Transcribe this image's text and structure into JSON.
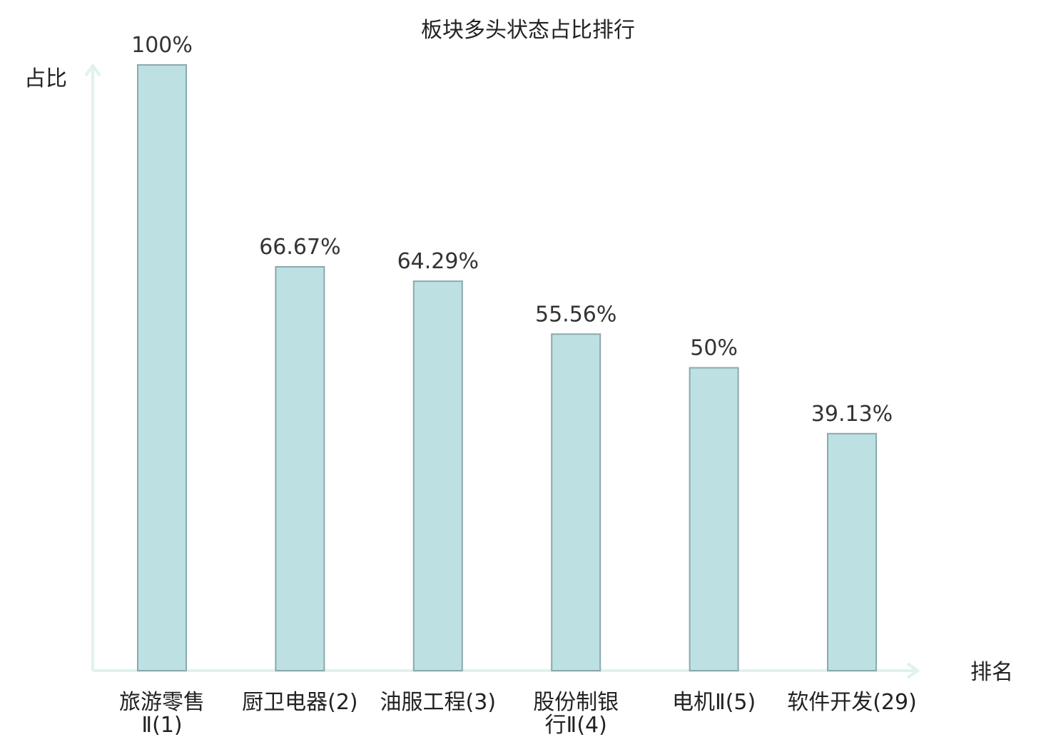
{
  "chart_data": {
    "type": "bar",
    "title": "板块多头状态占比排行",
    "ylabel": "占比",
    "xlabel": "排名",
    "ylim": [
      0,
      100
    ],
    "grid": false,
    "categories": [
      {
        "name": "旅游零售Ⅱ",
        "rank": "(1)",
        "lines": [
          "旅游零售",
          "Ⅱ(1)"
        ],
        "highlight": false
      },
      {
        "name": "厨卫电器",
        "rank": "(2)",
        "lines": [
          "厨卫电器(2)"
        ],
        "highlight": false
      },
      {
        "name": "油服工程",
        "rank": "(3)",
        "lines": [
          "油服工程(3)"
        ],
        "highlight": false
      },
      {
        "name": "股份制银行Ⅱ",
        "rank": "(4)",
        "lines": [
          "股份制银",
          "行Ⅱ(4)"
        ],
        "highlight": false
      },
      {
        "name": "电机Ⅱ",
        "rank": "(5)",
        "lines": [
          "电机Ⅱ(5)"
        ],
        "highlight": false
      },
      {
        "name": "软件开发",
        "rank": "(29)",
        "lines": [
          "软件开发(29)"
        ],
        "highlight": true
      }
    ],
    "values": [
      100,
      66.67,
      64.29,
      55.56,
      50,
      39.13
    ],
    "value_labels": [
      "100%",
      "66.67%",
      "64.29%",
      "55.56%",
      "50%",
      "39.13%"
    ],
    "colors": {
      "bar_fill": "#bde0e3",
      "bar_stroke": "#8aa9ad",
      "axis": "#dff2ee",
      "highlight_text": "#e8141b",
      "text": "#222222"
    }
  }
}
